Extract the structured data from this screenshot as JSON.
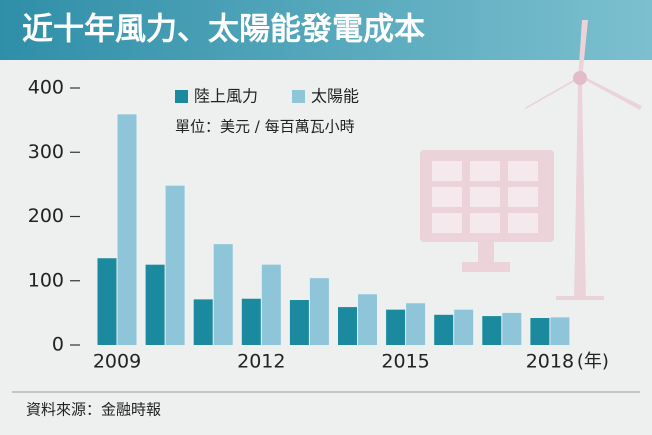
{
  "chart_data": {
    "type": "bar",
    "title": "近十年風力、太陽能發電成本",
    "note": "單位：美元 / 每百萬瓦小時",
    "x_unit": "(年)",
    "source": "資料來源：金融時報",
    "categories": [
      "2009",
      null,
      null,
      "2012",
      null,
      null,
      "2015",
      null,
      null,
      "2018"
    ],
    "series": [
      {
        "name": "陸上風力",
        "color": "#1b8a9e",
        "values": [
          135,
          125,
          71,
          72,
          70,
          59,
          55,
          47,
          45,
          42
        ]
      },
      {
        "name": "太陽能",
        "color": "#8ec5d9",
        "values": [
          359,
          248,
          157,
          125,
          104,
          79,
          65,
          55,
          50,
          43
        ]
      }
    ],
    "ylim": [
      0,
      400
    ],
    "yticks": [
      0,
      100,
      200,
      300,
      400
    ],
    "grid": false
  }
}
